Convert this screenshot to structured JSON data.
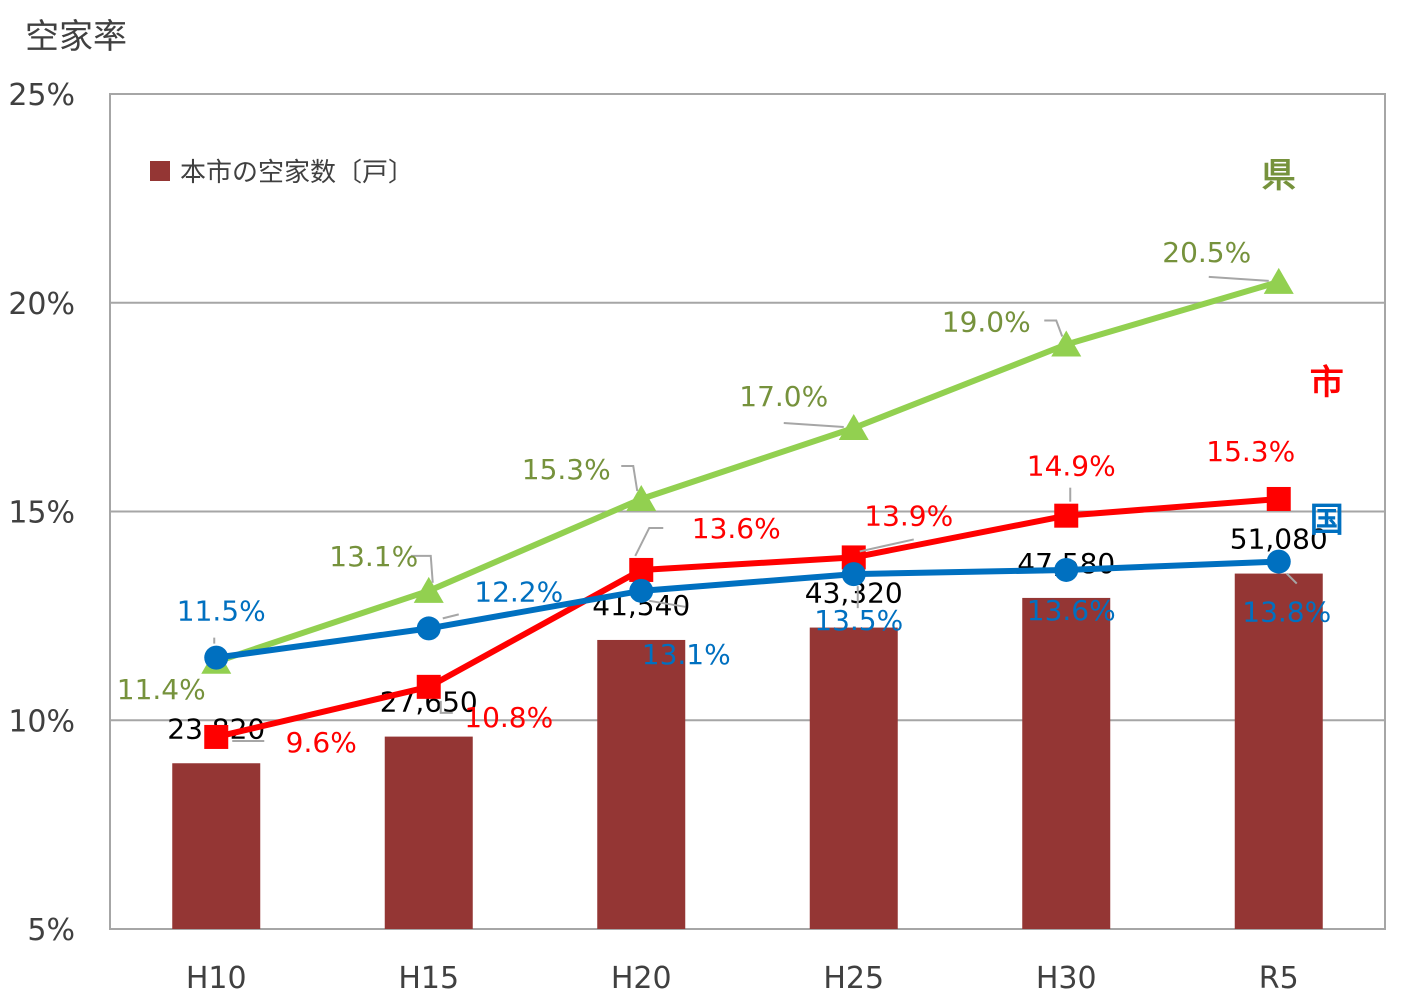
{
  "chart_data": {
    "type": "bar+line",
    "title": "",
    "ylabel": "空家率",
    "ylim": [
      5,
      25
    ],
    "yticks": [
      "5%",
      "10%",
      "15%",
      "20%",
      "25%"
    ],
    "ytick_values": [
      5,
      10,
      15,
      20,
      25
    ],
    "categories": [
      "H10",
      "H15",
      "H20",
      "H25",
      "H30",
      "R5"
    ],
    "grid": true,
    "legend": {
      "position": "top-left",
      "entries": [
        "本市の空家数〔戸〕"
      ]
    },
    "bars": {
      "name": "本市の空家数〔戸〕",
      "color": "#943634",
      "values": [
        23820,
        27650,
        41540,
        43320,
        47580,
        51080
      ],
      "labels": [
        "23,820",
        "27,650",
        "41,540",
        "43,320",
        "47,580",
        "51,080"
      ]
    },
    "series": [
      {
        "name": "県",
        "color": "#92D050",
        "label_color": "#76923C",
        "marker": "triangle",
        "values": [
          11.4,
          13.1,
          15.3,
          17.0,
          19.0,
          20.5
        ],
        "labels": [
          "11.4%",
          "13.1%",
          "15.3%",
          "17.0%",
          "19.0%",
          "20.5%"
        ]
      },
      {
        "name": "市",
        "color": "#FF0000",
        "label_color": "#FF0000",
        "marker": "square",
        "values": [
          9.6,
          10.8,
          13.6,
          13.9,
          14.9,
          15.3
        ],
        "labels": [
          "9.6%",
          "10.8%",
          "13.6%",
          "13.9%",
          "14.9%",
          "15.3%"
        ]
      },
      {
        "name": "国",
        "color": "#0070C0",
        "label_color": "#0070C0",
        "marker": "circle",
        "values": [
          11.5,
          12.2,
          13.1,
          13.5,
          13.6,
          13.8
        ],
        "labels": [
          "11.5%",
          "12.2%",
          "13.1%",
          "13.5%",
          "13.6%",
          "13.8%"
        ]
      }
    ]
  }
}
